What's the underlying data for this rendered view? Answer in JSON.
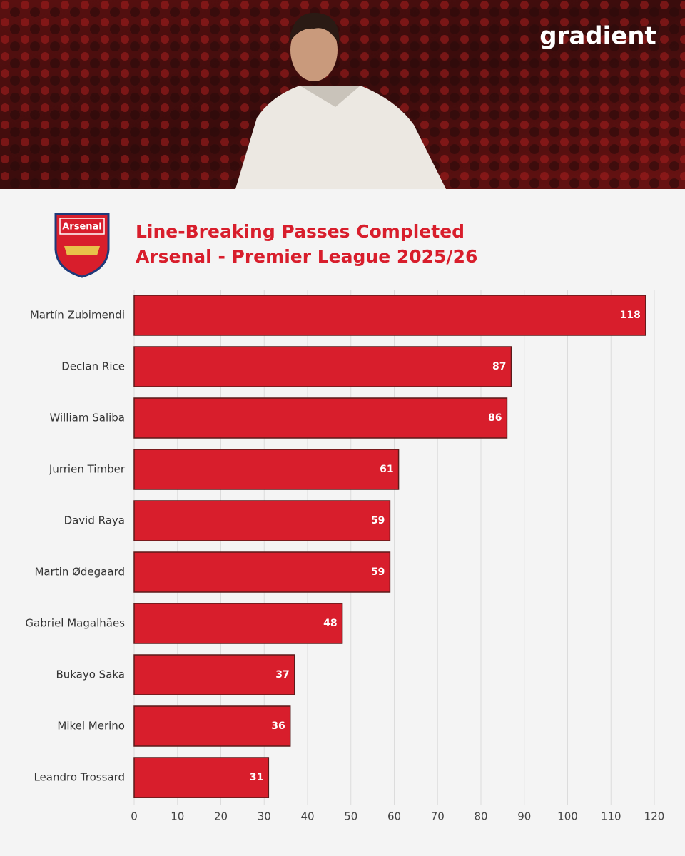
{
  "brand": "gradient",
  "badge": "Arsenal",
  "chart_data": {
    "type": "bar",
    "orientation": "horizontal",
    "title": "Line-Breaking Passes Completed",
    "subtitle": "Arsenal - Premier League 2025/26",
    "categories": [
      "Martín Zubimendi",
      "Declan Rice",
      "William Saliba",
      "Jurrien Timber",
      "David Raya",
      "Martin Ødegaard",
      "Gabriel Magalhães",
      "Bukayo Saka",
      "Mikel Merino",
      "Leandro Trossard"
    ],
    "values": [
      118,
      87,
      86,
      61,
      59,
      59,
      48,
      37,
      36,
      31
    ],
    "color": "#d81e2c",
    "xlim": [
      0,
      120
    ],
    "xticks": [
      0,
      10,
      20,
      30,
      40,
      50,
      60,
      70,
      80,
      90,
      100,
      110,
      120
    ],
    "grid": true
  }
}
